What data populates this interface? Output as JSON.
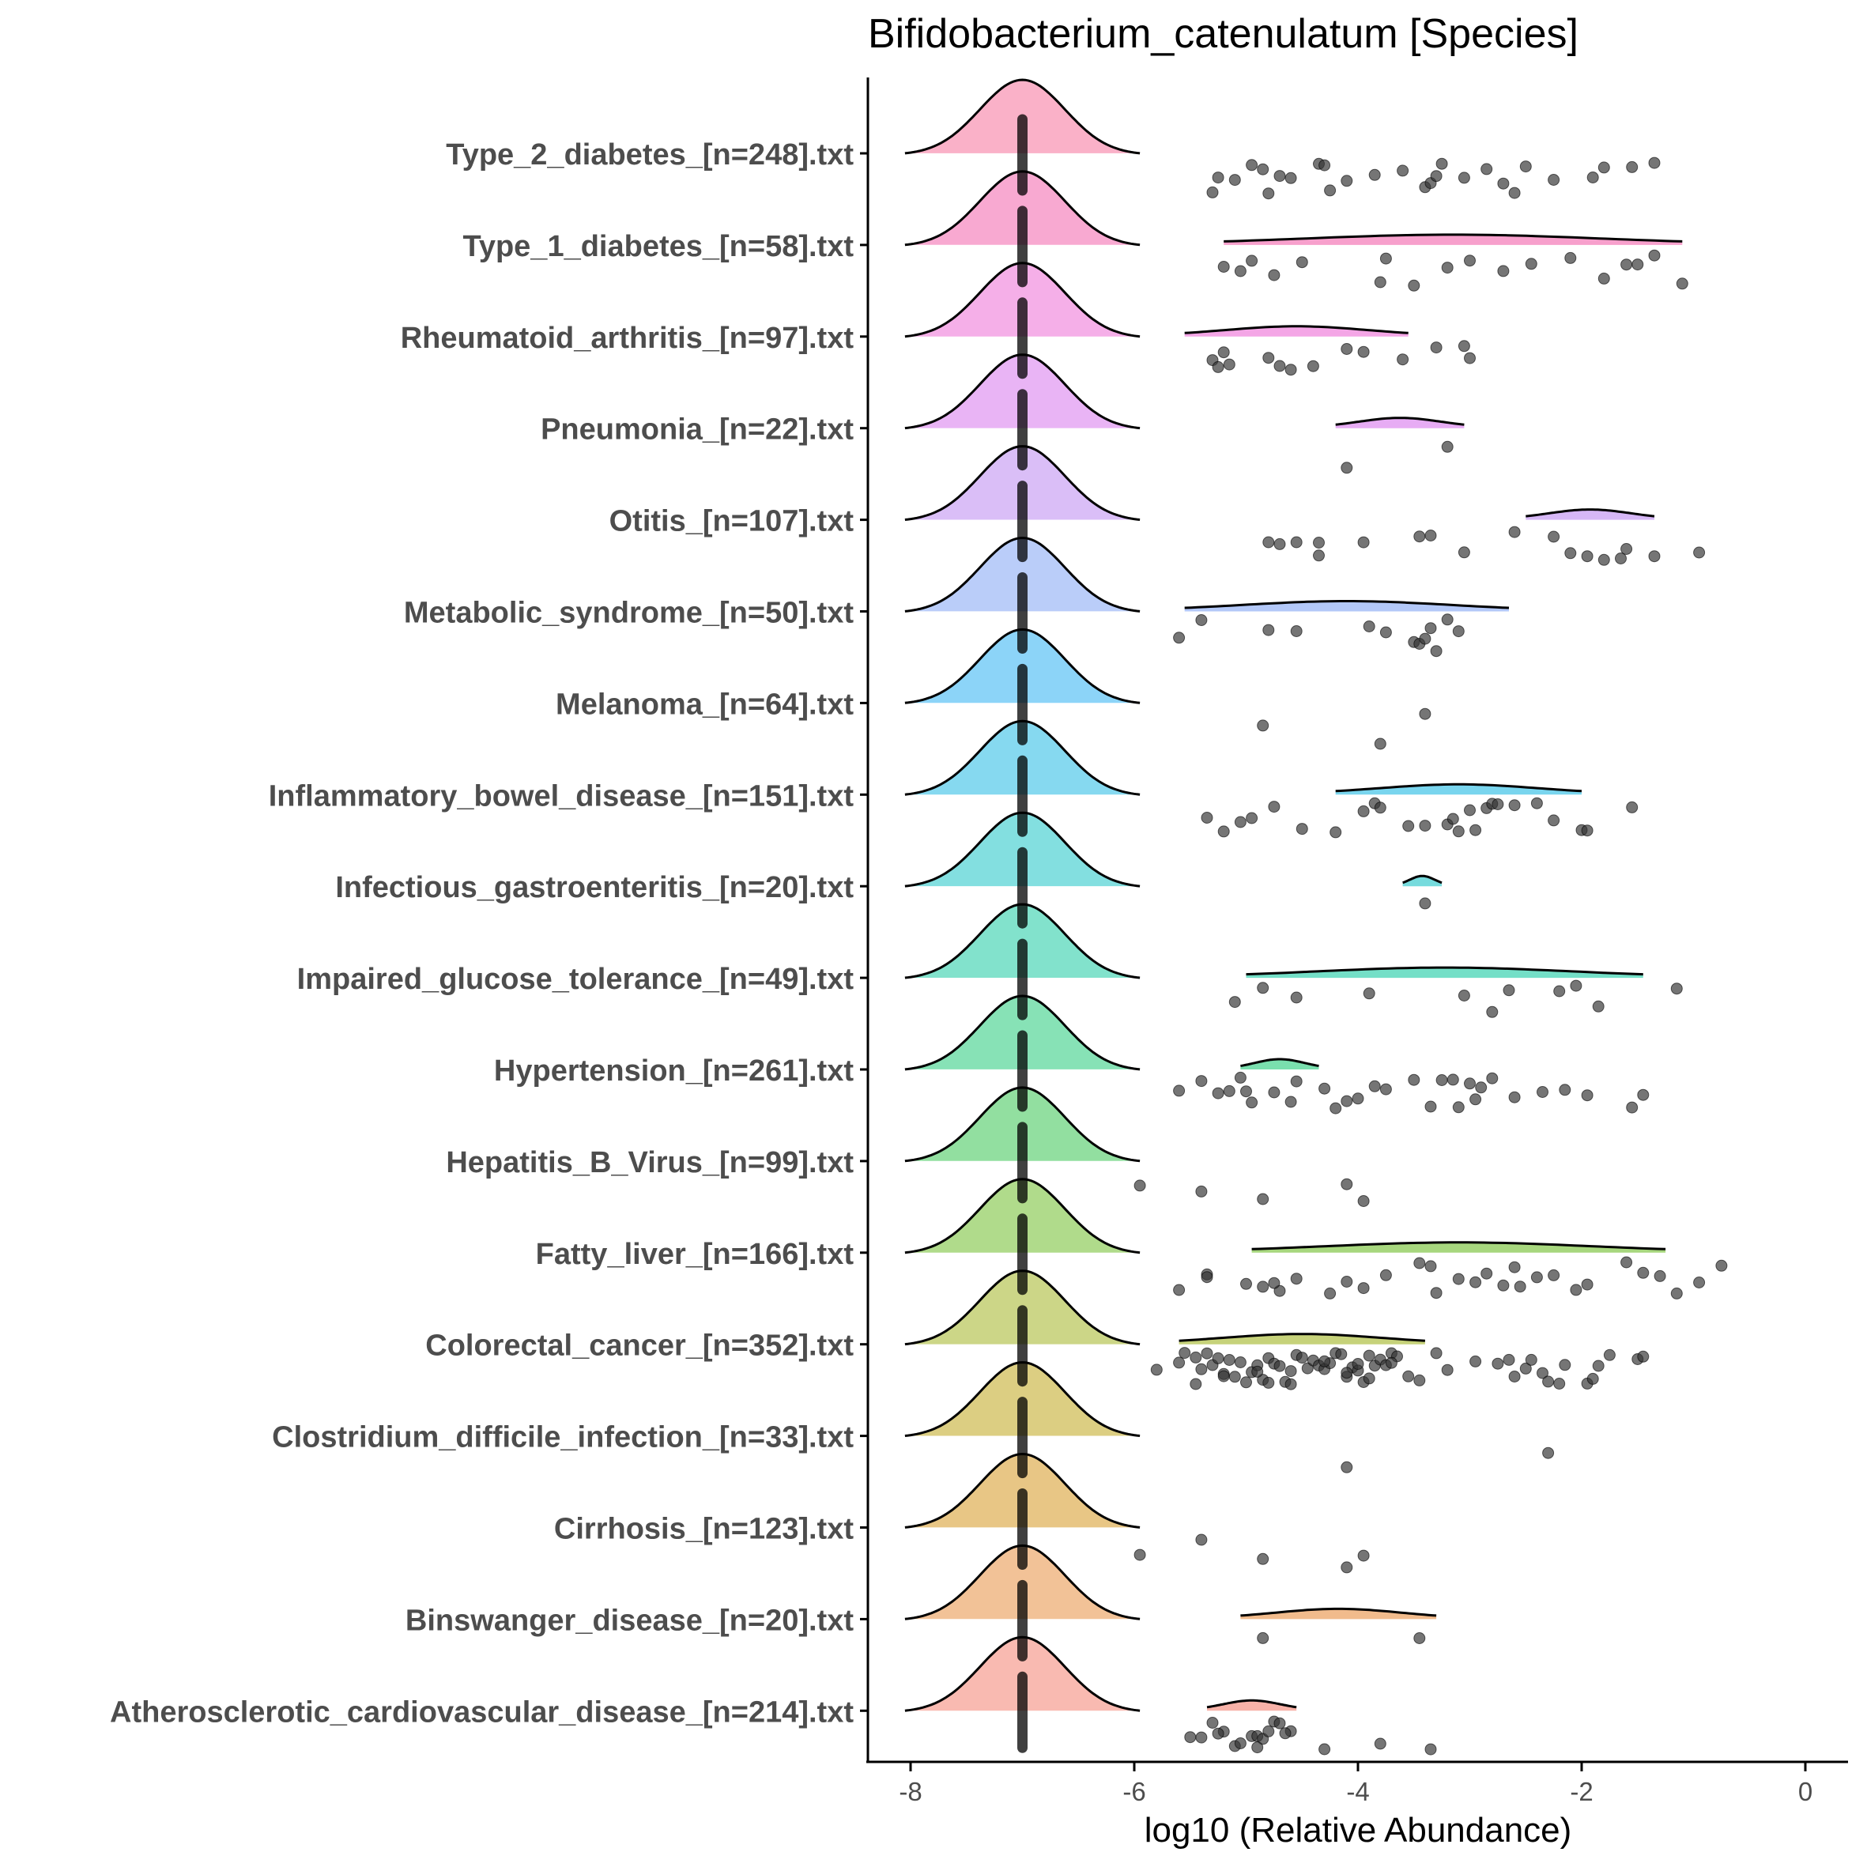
{
  "chart_data": {
    "type": "ridgeline",
    "title": "Bifidobacterium_catenulatum [Species]",
    "xlabel": "log10 (Relative Abundance)",
    "ylabel": "",
    "xlim": [
      -8.4,
      0.4
    ],
    "xticks": [
      -8,
      -6,
      -4,
      -2,
      0
    ],
    "xtick_labels": [
      "-8",
      "-6",
      "-4",
      "-2",
      "0"
    ],
    "grid": false,
    "legend": "none",
    "background_value": -7,
    "series": [
      {
        "name": "Type_2_diabetes_[n=248].txt",
        "color": "#F9A8C2",
        "subdist": null,
        "points": [
          -5.25,
          -5.1,
          -4.95,
          -4.85,
          -4.7,
          -4.6,
          -4.35,
          -4.25,
          -4.1,
          -3.85,
          -3.6,
          -3.4,
          -3.35,
          -3.25,
          -3.05,
          -2.85,
          -2.7,
          -2.5,
          -2.25,
          -1.9,
          -1.55,
          -1.35,
          -5.3,
          -4.8,
          -4.3,
          -3.3,
          -2.6,
          -1.8
        ]
      },
      {
        "name": "Type_1_diabetes_[n=58].txt",
        "color": "#F7A0CC",
        "subdist": {
          "from": -5.2,
          "to": -1.1
        },
        "points": [
          -5.2,
          -5.05,
          -4.75,
          -4.5,
          -3.75,
          -3.5,
          -3.2,
          -3.0,
          -2.7,
          -2.45,
          -2.1,
          -1.8,
          -1.6,
          -1.5,
          -1.35,
          -1.1,
          -4.95,
          -3.8
        ]
      },
      {
        "name": "Rheumatoid_arthritis_[n=97].txt",
        "color": "#F4A6E6",
        "subdist": {
          "from": -5.55,
          "to": -3.55
        },
        "points": [
          -5.3,
          -5.2,
          -5.15,
          -4.8,
          -4.6,
          -4.4,
          -4.1,
          -3.95,
          -3.6,
          -3.3,
          -3.05,
          -3.0,
          -5.25,
          -4.7
        ]
      },
      {
        "name": "Pneumonia_[n=22].txt",
        "color": "#E7ACF4",
        "subdist": {
          "from": -4.2,
          "to": -3.05
        },
        "points": [
          -4.1,
          -3.2
        ]
      },
      {
        "name": "Otitis_[n=107].txt",
        "color": "#D6B7F6",
        "subdist": {
          "from": -2.5,
          "to": -1.35
        },
        "points": [
          -4.8,
          -4.7,
          -4.55,
          -4.35,
          -4.35,
          -3.95,
          -3.45,
          -3.35,
          -3.05,
          -2.6,
          -2.25,
          -2.1,
          -1.95,
          -1.8,
          -1.65,
          -1.35,
          -0.95,
          -1.6
        ]
      },
      {
        "name": "Metabolic_syndrome_[n=50].txt",
        "color": "#B3C8F8",
        "subdist": {
          "from": -5.55,
          "to": -2.65
        },
        "points": [
          -5.6,
          -5.4,
          -4.8,
          -4.55,
          -3.9,
          -3.75,
          -3.5,
          -3.45,
          -3.35,
          -3.3,
          -3.2,
          -3.1,
          -3.4
        ]
      },
      {
        "name": "Melanoma_[n=64].txt",
        "color": "#7FCFF7",
        "subdist": null,
        "points": [
          -4.85,
          -3.4,
          -3.8
        ]
      },
      {
        "name": "Inflammatory_bowel_disease_[n=151].txt",
        "color": "#79D5EE",
        "subdist": {
          "from": -4.2,
          "to": -2.0
        },
        "points": [
          -5.35,
          -5.2,
          -5.05,
          -4.95,
          -4.75,
          -4.5,
          -4.2,
          -3.95,
          -3.85,
          -3.8,
          -3.55,
          -3.4,
          -3.2,
          -3.1,
          -3.0,
          -2.95,
          -2.85,
          -2.8,
          -2.6,
          -2.4,
          -2.25,
          -2.0,
          -1.95,
          -1.55,
          -3.15,
          -2.75
        ]
      },
      {
        "name": "Infectious_gastroenteritis_[n=20].txt",
        "color": "#76DBDD",
        "subdist": {
          "from": -3.6,
          "to": -3.25
        },
        "points": [
          -3.4
        ]
      },
      {
        "name": "Impaired_glucose_tolerance_[n=49].txt",
        "color": "#74DFC7",
        "subdist": {
          "from": -5.0,
          "to": -1.45
        },
        "points": [
          -5.1,
          -4.85,
          -4.55,
          -3.9,
          -3.05,
          -2.8,
          -2.65,
          -2.2,
          -2.05,
          -1.85,
          -1.15
        ]
      },
      {
        "name": "Hypertension_[n=261].txt",
        "color": "#7ADFAE",
        "subdist": {
          "from": -5.05,
          "to": -4.35
        },
        "points": [
          -5.6,
          -5.4,
          -5.25,
          -5.15,
          -5.05,
          -4.95,
          -4.75,
          -4.6,
          -4.3,
          -4.2,
          -4.1,
          -4.0,
          -3.85,
          -3.75,
          -3.5,
          -3.35,
          -3.25,
          -3.15,
          -3.0,
          -2.9,
          -2.8,
          -2.6,
          -2.35,
          -2.15,
          -1.95,
          -1.55,
          -1.45,
          -5.0,
          -4.55,
          -3.1,
          -2.95
        ]
      },
      {
        "name": "Hepatitis_B_Virus_[n=99].txt",
        "color": "#86DC96",
        "subdist": null,
        "points": [
          -5.95,
          -4.85,
          -5.4,
          -4.1,
          -3.95
        ]
      },
      {
        "name": "Fatty_liver_[n=166].txt",
        "color": "#A7D77E",
        "subdist": {
          "from": -4.95,
          "to": -1.25
        },
        "points": [
          -5.6,
          -5.35,
          -5.35,
          -5.0,
          -4.85,
          -4.7,
          -4.55,
          -4.25,
          -4.1,
          -3.95,
          -3.75,
          -3.45,
          -3.3,
          -3.1,
          -2.95,
          -2.85,
          -2.7,
          -2.55,
          -2.4,
          -2.25,
          -2.05,
          -1.95,
          -1.6,
          -1.45,
          -1.3,
          -1.15,
          -0.95,
          -0.75,
          -4.75,
          -3.35,
          -2.6
        ]
      },
      {
        "name": "Colorectal_cancer_[n=352].txt",
        "color": "#C6D27A",
        "subdist": {
          "from": -5.6,
          "to": -3.4
        },
        "points": [
          -5.8,
          -5.6,
          -5.55,
          -5.45,
          -5.4,
          -5.35,
          -5.3,
          -5.25,
          -5.2,
          -5.15,
          -5.1,
          -5.05,
          -5.0,
          -4.95,
          -4.9,
          -4.85,
          -4.8,
          -4.75,
          -4.7,
          -4.65,
          -4.6,
          -4.55,
          -4.5,
          -4.45,
          -4.4,
          -4.35,
          -4.3,
          -4.25,
          -4.2,
          -4.15,
          -4.1,
          -4.05,
          -4.0,
          -3.95,
          -3.9,
          -3.85,
          -3.8,
          -3.75,
          -3.7,
          -3.65,
          -3.55,
          -3.45,
          -3.3,
          -3.2,
          -2.95,
          -2.75,
          -2.65,
          -2.6,
          -2.5,
          -2.45,
          -2.35,
          -2.3,
          -2.2,
          -2.15,
          -1.95,
          -1.9,
          -1.85,
          -1.75,
          -1.5,
          -1.45,
          -5.2,
          -4.9,
          -4.6,
          -4.3,
          -4.0,
          -3.7,
          -5.45,
          -4.8,
          -4.1,
          -3.9
        ]
      },
      {
        "name": "Clostridium_difficile_infection_[n=33].txt",
        "color": "#D8C974",
        "subdist": null,
        "points": [
          -4.1,
          -2.3
        ]
      },
      {
        "name": "Cirrhosis_[n=123].txt",
        "color": "#E6C078",
        "subdist": null,
        "points": [
          -5.95,
          -5.4,
          -4.85,
          -4.1,
          -3.95
        ]
      },
      {
        "name": "Binswanger_disease_[n=20].txt",
        "color": "#F1BB8C",
        "subdist": {
          "from": -5.05,
          "to": -3.3
        },
        "points": [
          -4.85,
          -3.45
        ]
      },
      {
        "name": "Atherosclerotic_cardiovascular_disease_[n=214].txt",
        "color": "#F8B2A8",
        "subdist": {
          "from": -5.35,
          "to": -4.55
        },
        "points": [
          -5.5,
          -5.4,
          -5.3,
          -5.2,
          -5.1,
          -5.05,
          -4.95,
          -4.9,
          -4.85,
          -4.8,
          -4.75,
          -4.7,
          -4.6,
          -4.3,
          -3.8,
          -3.35,
          -5.25,
          -4.9,
          -4.65
        ]
      }
    ]
  }
}
